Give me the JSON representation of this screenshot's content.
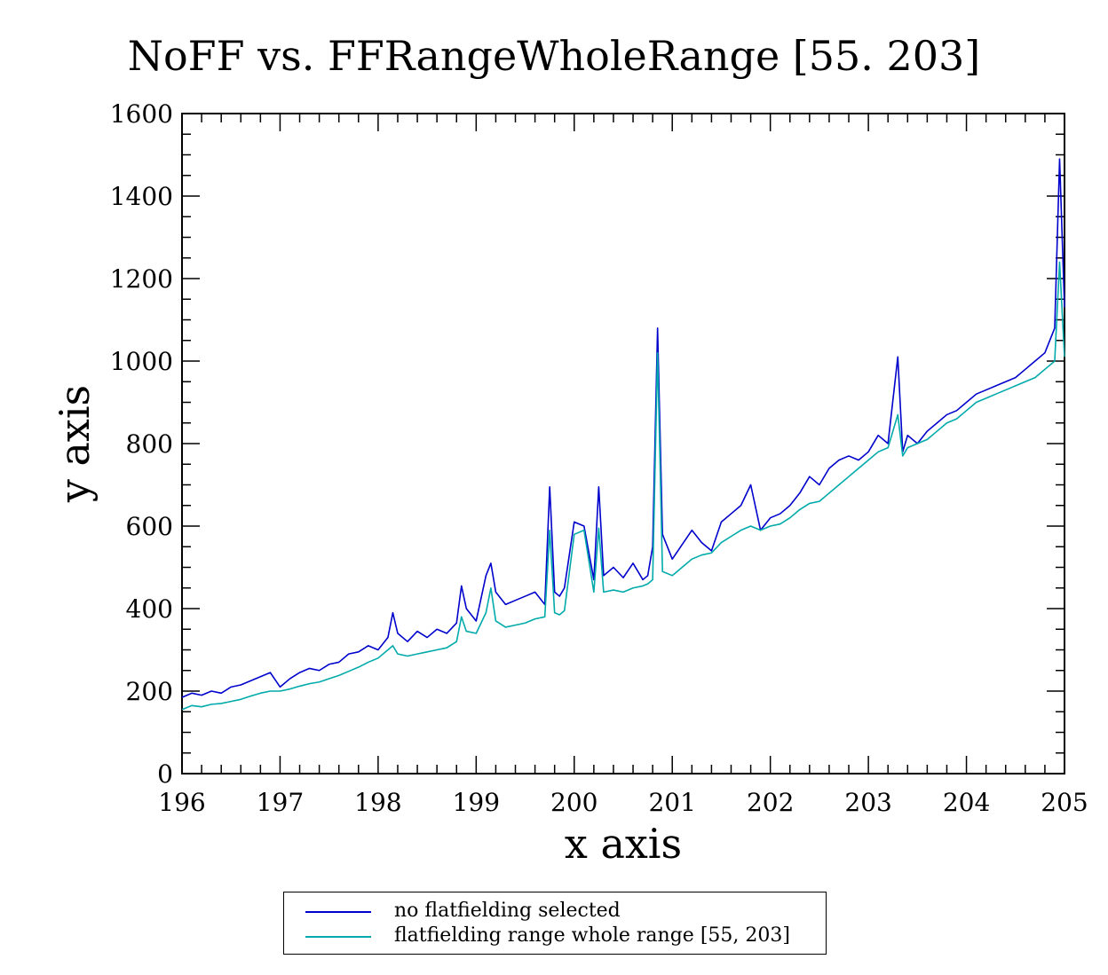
{
  "chart_data": {
    "type": "line",
    "title": "NoFF vs. FFRangeWholeRange [55. 203]",
    "xlabel": "x axis",
    "ylabel": "y axis",
    "xlim": [
      196,
      205
    ],
    "ylim": [
      0,
      1600
    ],
    "xticks": [
      "196",
      "197",
      "198",
      "199",
      "200",
      "201",
      "202",
      "203",
      "204",
      "205"
    ],
    "yticks": [
      "0",
      "200",
      "400",
      "600",
      "800",
      "1000",
      "1200",
      "1400",
      "1600"
    ],
    "grid": false,
    "legend_position": "bottom",
    "series": [
      {
        "name": "no flatfielding selected",
        "color": "#0000cc",
        "x": [
          196.0,
          196.1,
          196.2,
          196.3,
          196.4,
          196.5,
          196.6,
          196.7,
          196.8,
          196.9,
          197.0,
          197.1,
          197.2,
          197.3,
          197.4,
          197.5,
          197.6,
          197.7,
          197.8,
          197.9,
          198.0,
          198.1,
          198.15,
          198.2,
          198.3,
          198.4,
          198.5,
          198.6,
          198.7,
          198.8,
          198.85,
          198.9,
          199.0,
          199.1,
          199.15,
          199.2,
          199.3,
          199.4,
          199.5,
          199.6,
          199.7,
          199.75,
          199.8,
          199.85,
          199.9,
          200.0,
          200.1,
          200.2,
          200.25,
          200.3,
          200.4,
          200.5,
          200.6,
          200.7,
          200.75,
          200.8,
          200.85,
          200.9,
          201.0,
          201.1,
          201.2,
          201.3,
          201.4,
          201.5,
          201.6,
          201.7,
          201.8,
          201.9,
          202.0,
          202.1,
          202.2,
          202.3,
          202.4,
          202.5,
          202.6,
          202.7,
          202.8,
          202.9,
          203.0,
          203.1,
          203.2,
          203.3,
          203.35,
          203.4,
          203.5,
          203.6,
          203.7,
          203.8,
          203.9,
          204.0,
          204.1,
          204.2,
          204.3,
          204.4,
          204.5,
          204.6,
          204.7,
          204.8,
          204.9,
          204.95,
          205.0
        ],
        "values": [
          185,
          195,
          190,
          200,
          195,
          210,
          215,
          225,
          235,
          245,
          210,
          230,
          245,
          255,
          250,
          265,
          270,
          290,
          295,
          310,
          300,
          330,
          390,
          340,
          320,
          345,
          330,
          350,
          340,
          365,
          455,
          400,
          370,
          480,
          510,
          440,
          410,
          420,
          430,
          440,
          410,
          695,
          440,
          430,
          450,
          610,
          600,
          470,
          695,
          480,
          500,
          475,
          510,
          470,
          480,
          550,
          1080,
          580,
          520,
          555,
          590,
          560,
          540,
          610,
          630,
          650,
          700,
          590,
          620,
          630,
          650,
          680,
          720,
          700,
          740,
          760,
          770,
          760,
          780,
          820,
          800,
          1010,
          780,
          820,
          800,
          830,
          850,
          870,
          880,
          900,
          920,
          930,
          940,
          950,
          960,
          980,
          1000,
          1020,
          1080,
          1490,
          1130
        ]
      },
      {
        "name": "flatfielding range whole range [55, 203]",
        "color": "#00aaaa",
        "x": [
          196.0,
          196.1,
          196.2,
          196.3,
          196.4,
          196.5,
          196.6,
          196.7,
          196.8,
          196.9,
          197.0,
          197.1,
          197.2,
          197.3,
          197.4,
          197.5,
          197.6,
          197.7,
          197.8,
          197.9,
          198.0,
          198.1,
          198.15,
          198.2,
          198.3,
          198.4,
          198.5,
          198.6,
          198.7,
          198.8,
          198.85,
          198.9,
          199.0,
          199.1,
          199.15,
          199.2,
          199.3,
          199.4,
          199.5,
          199.6,
          199.7,
          199.75,
          199.8,
          199.85,
          199.9,
          200.0,
          200.1,
          200.2,
          200.25,
          200.3,
          200.4,
          200.5,
          200.6,
          200.7,
          200.75,
          200.8,
          200.85,
          200.9,
          201.0,
          201.1,
          201.2,
          201.3,
          201.4,
          201.5,
          201.6,
          201.7,
          201.8,
          201.9,
          202.0,
          202.1,
          202.2,
          202.3,
          202.4,
          202.5,
          202.6,
          202.7,
          202.8,
          202.9,
          203.0,
          203.1,
          203.2,
          203.3,
          203.35,
          203.4,
          203.5,
          203.6,
          203.7,
          203.8,
          203.9,
          204.0,
          204.1,
          204.2,
          204.3,
          204.4,
          204.5,
          204.6,
          204.7,
          204.8,
          204.9,
          204.95,
          205.0
        ],
        "values": [
          155,
          165,
          162,
          168,
          170,
          175,
          180,
          188,
          195,
          200,
          200,
          205,
          212,
          218,
          222,
          230,
          238,
          248,
          258,
          270,
          280,
          300,
          310,
          290,
          285,
          290,
          295,
          300,
          305,
          320,
          380,
          345,
          340,
          390,
          450,
          370,
          355,
          360,
          365,
          375,
          380,
          590,
          390,
          385,
          395,
          580,
          590,
          440,
          595,
          440,
          445,
          440,
          450,
          455,
          460,
          470,
          1020,
          490,
          480,
          500,
          520,
          530,
          535,
          560,
          575,
          590,
          600,
          590,
          600,
          605,
          620,
          640,
          655,
          660,
          680,
          700,
          720,
          740,
          760,
          780,
          790,
          870,
          770,
          790,
          800,
          810,
          830,
          850,
          860,
          880,
          900,
          910,
          920,
          930,
          940,
          950,
          960,
          980,
          1000,
          1240,
          1010
        ]
      }
    ]
  }
}
